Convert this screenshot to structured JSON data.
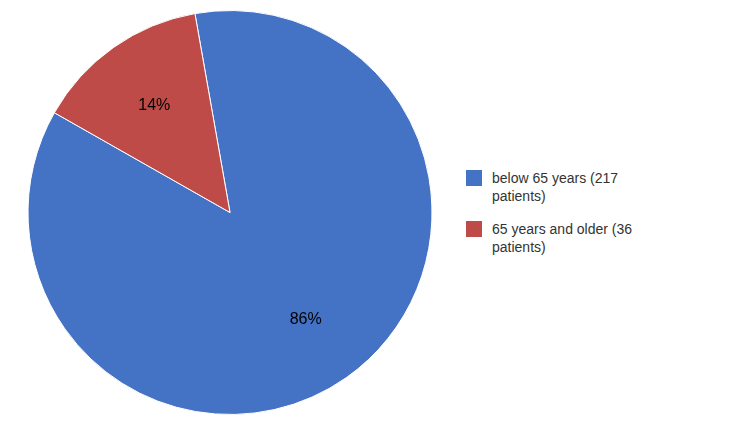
{
  "chart_data": {
    "type": "pie",
    "categories": [
      "below 65 years (217\npatients)",
      "65 years and older (36\npatients)"
    ],
    "values": [
      86,
      14
    ],
    "value_labels": [
      "86%",
      "14%"
    ],
    "colors": [
      "#4472C4",
      "#BE4B48"
    ],
    "data_labels": true,
    "legend": "right"
  }
}
